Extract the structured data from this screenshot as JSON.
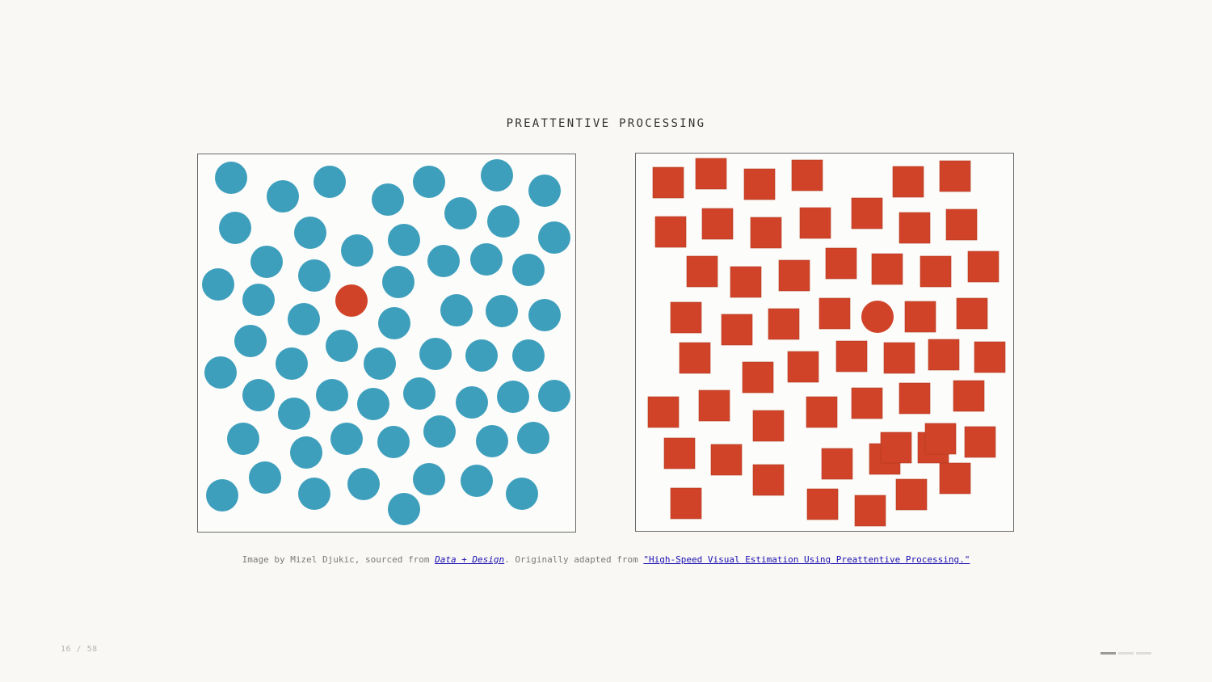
{
  "slide": {
    "title": "PREATTENTIVE PROCESSING",
    "page_counter": "16 / 58"
  },
  "caption": {
    "prefix": "Image by Mizel Djukic, sourced from ",
    "link1_text": "Data + Design",
    "middle": ". Originally adapted from ",
    "link2_text": "\"High-Speed Visual Estimation Using Preattentive Processing.\""
  },
  "colors": {
    "distractor_circle": "#3e9fbd",
    "target": "#d04329",
    "distractor_square": "#d04329"
  },
  "progress": {
    "segments": 3,
    "active_index": 0
  }
}
